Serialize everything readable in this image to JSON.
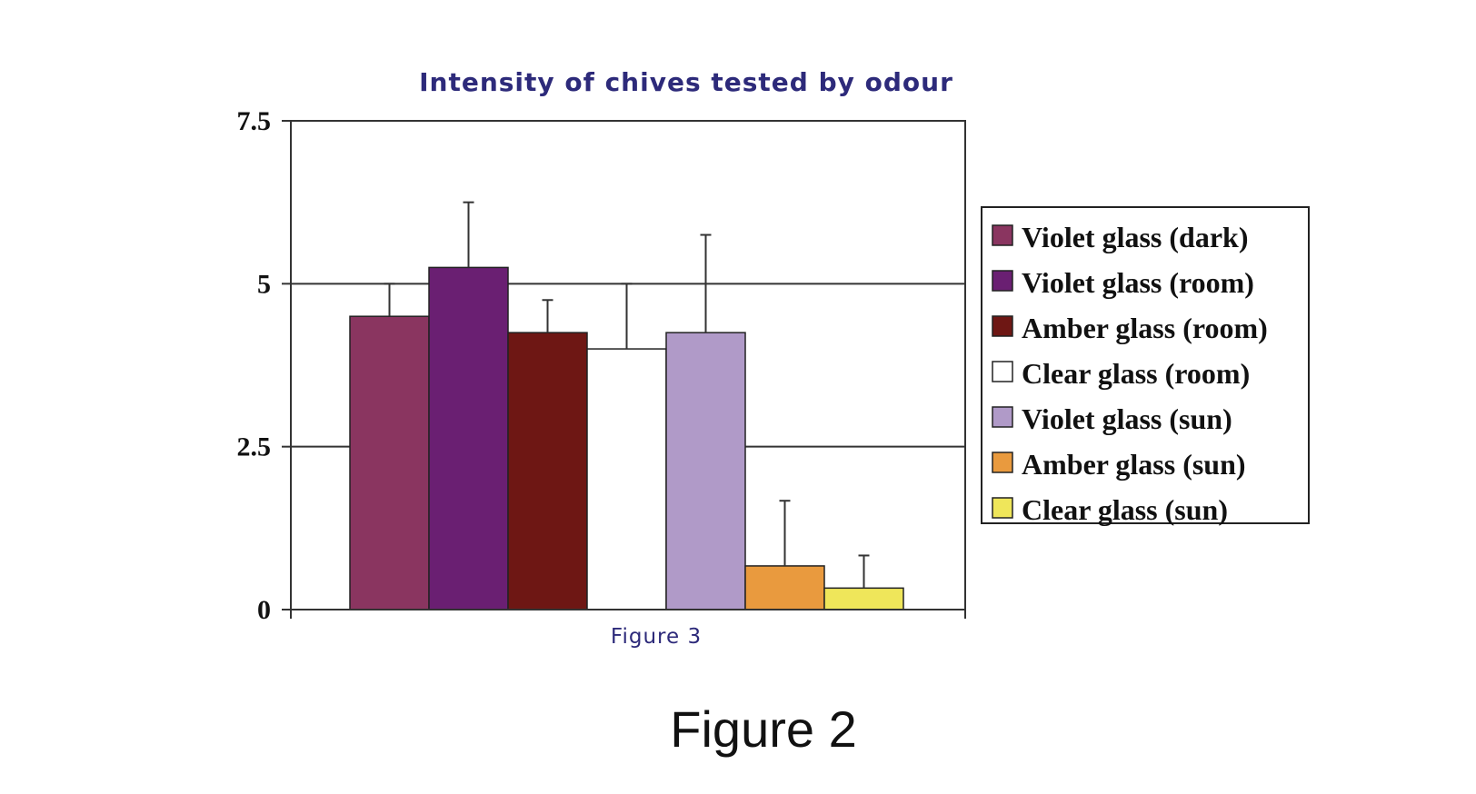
{
  "caption": "Figure 2",
  "chart_data": {
    "type": "bar",
    "title": "Intensity of chives tested by odour",
    "xlabel": "Figure 3",
    "ylabel": "",
    "ylim": [
      0,
      7.5
    ],
    "yticks": [
      "0",
      "2.5",
      "5",
      "7.5"
    ],
    "grid": true,
    "legend_position": "right",
    "series": [
      {
        "name": "Violet glass (dark)",
        "value": 4.5,
        "error": 0.5,
        "color": "#8a3560"
      },
      {
        "name": "Violet glass (room)",
        "value": 5.25,
        "error": 1.0,
        "color": "#6a1f72"
      },
      {
        "name": "Amber glass (room)",
        "value": 4.25,
        "error": 0.5,
        "color": "#6e1714"
      },
      {
        "name": "Clear glass (room)",
        "value": 4.0,
        "error": 1.0,
        "color": "#ffffff"
      },
      {
        "name": "Violet glass (sun)",
        "value": 4.25,
        "error": 1.5,
        "color": "#b09ac8"
      },
      {
        "name": "Amber glass (sun)",
        "value": 0.67,
        "error": 1.0,
        "color": "#e99a3e"
      },
      {
        "name": "Clear glass (sun)",
        "value": 0.33,
        "error": 0.5,
        "color": "#efe65a"
      }
    ]
  }
}
